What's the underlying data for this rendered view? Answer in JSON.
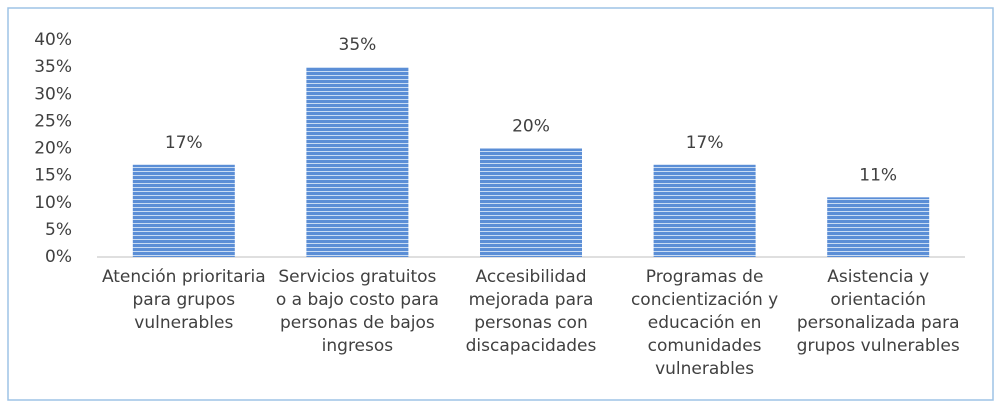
{
  "chart_data": {
    "type": "bar",
    "categories": [
      "Atención prioritaria para grupos vulnerables",
      "Servicios gratuitos o a bajo costo para personas de bajos ingresos",
      "Accesibilidad mejorada para personas con discapacidades",
      "Programas de concientización y educación en comunidades vulnerables",
      "Asistencia y orientación personalizada para grupos vulnerables"
    ],
    "values": [
      17,
      35,
      20,
      17,
      11
    ],
    "value_labels": [
      "17%",
      "35%",
      "20%",
      "17%",
      "11%"
    ],
    "color": "#5b9bd5",
    "ylim": [
      0,
      40
    ],
    "yticks": [
      {
        "value": 0,
        "label": "0%"
      },
      {
        "value": 5,
        "label": "5%"
      },
      {
        "value": 10,
        "label": "10%"
      },
      {
        "value": 15,
        "label": "15%"
      },
      {
        "value": 20,
        "label": "20%"
      },
      {
        "value": 25,
        "label": "25%"
      },
      {
        "value": 30,
        "label": "30%"
      },
      {
        "value": 35,
        "label": "35%"
      },
      {
        "value": 40,
        "label": "40%"
      }
    ],
    "grid": false
  }
}
